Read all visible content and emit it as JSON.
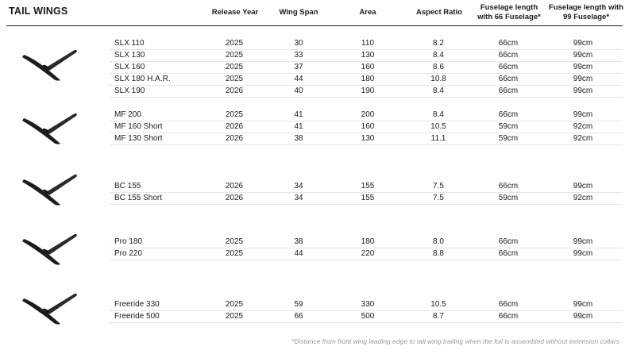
{
  "title": "TAIL WINGS",
  "headers": {
    "release_year": "Release Year",
    "wing_span": "Wing Span",
    "area": "Area",
    "aspect_ratio": "Aspect Ratio",
    "fuselage_66_line1": "Fuselage length",
    "fuselage_66_line2": "with 66 Fuselage*",
    "fuselage_99_line1": "Fuselage length with",
    "fuselage_99_line2": "99 Fuselage*"
  },
  "groups": [
    {
      "icon": "tail-wing-icon",
      "rows": [
        {
          "model": "SLX 110",
          "year": "2025",
          "span": "30",
          "area": "110",
          "ar": "8.2",
          "f66": "66cm",
          "f99": "99cm"
        },
        {
          "model": "SLX 130",
          "year": "2025",
          "span": "33",
          "area": "130",
          "ar": "8.4",
          "f66": "66cm",
          "f99": "99cm"
        },
        {
          "model": "SLX 160",
          "year": "2025",
          "span": "37",
          "area": "160",
          "ar": "8.6",
          "f66": "66cm",
          "f99": "99cm"
        },
        {
          "model": "SLX 180 H.A.R.",
          "year": "2025",
          "span": "44",
          "area": "180",
          "ar": "10.8",
          "f66": "66cm",
          "f99": "99cm"
        },
        {
          "model": "SLX 190",
          "year": "2026",
          "span": "40",
          "area": "190",
          "ar": "8.4",
          "f66": "66cm",
          "f99": "99cm"
        }
      ]
    },
    {
      "icon": "tail-wing-icon",
      "rows": [
        {
          "model": "MF 200",
          "year": "2025",
          "span": "41",
          "area": "200",
          "ar": "8.4",
          "f66": "66cm",
          "f99": "99cm"
        },
        {
          "model": "MF 160 Short",
          "year": "2026",
          "span": "41",
          "area": "160",
          "ar": "10.5",
          "f66": "59cm",
          "f99": "92cm"
        },
        {
          "model": "MF 130 Short",
          "year": "2026",
          "span": "38",
          "area": "130",
          "ar": "11.1",
          "f66": "59cm",
          "f99": "92cm"
        }
      ]
    },
    {
      "icon": "tail-wing-icon",
      "rows": [
        {
          "model": "BC 155",
          "year": "2026",
          "span": "34",
          "area": "155",
          "ar": "7.5",
          "f66": "66cm",
          "f99": "99cm"
        },
        {
          "model": "BC 155 Short",
          "year": "2026",
          "span": "34",
          "area": "155",
          "ar": "7.5",
          "f66": "59cm",
          "f99": "92cm"
        }
      ]
    },
    {
      "icon": "tail-wing-icon",
      "rows": [
        {
          "model": "Pro  180",
          "year": "2025",
          "span": "38",
          "area": "180",
          "ar": "8.0",
          "f66": "66cm",
          "f99": "99cm"
        },
        {
          "model": "Pro  220",
          "year": "2025",
          "span": "44",
          "area": "220",
          "ar": "8.8",
          "f66": "66cm",
          "f99": "99cm"
        }
      ]
    },
    {
      "icon": "tail-wing-icon",
      "rows": [
        {
          "model": "Freeride 330",
          "year": "2025",
          "span": "59",
          "area": "330",
          "ar": "10.5",
          "f66": "66cm",
          "f99": "99cm"
        },
        {
          "model": "Freeride 500",
          "year": "2025",
          "span": "66",
          "area": "500",
          "ar": "8.7",
          "f66": "66cm",
          "f99": "99cm"
        }
      ]
    }
  ],
  "footnote": "*Distance from front wing leading edge to tail wing trailing when the foil is assembled without extension collars"
}
